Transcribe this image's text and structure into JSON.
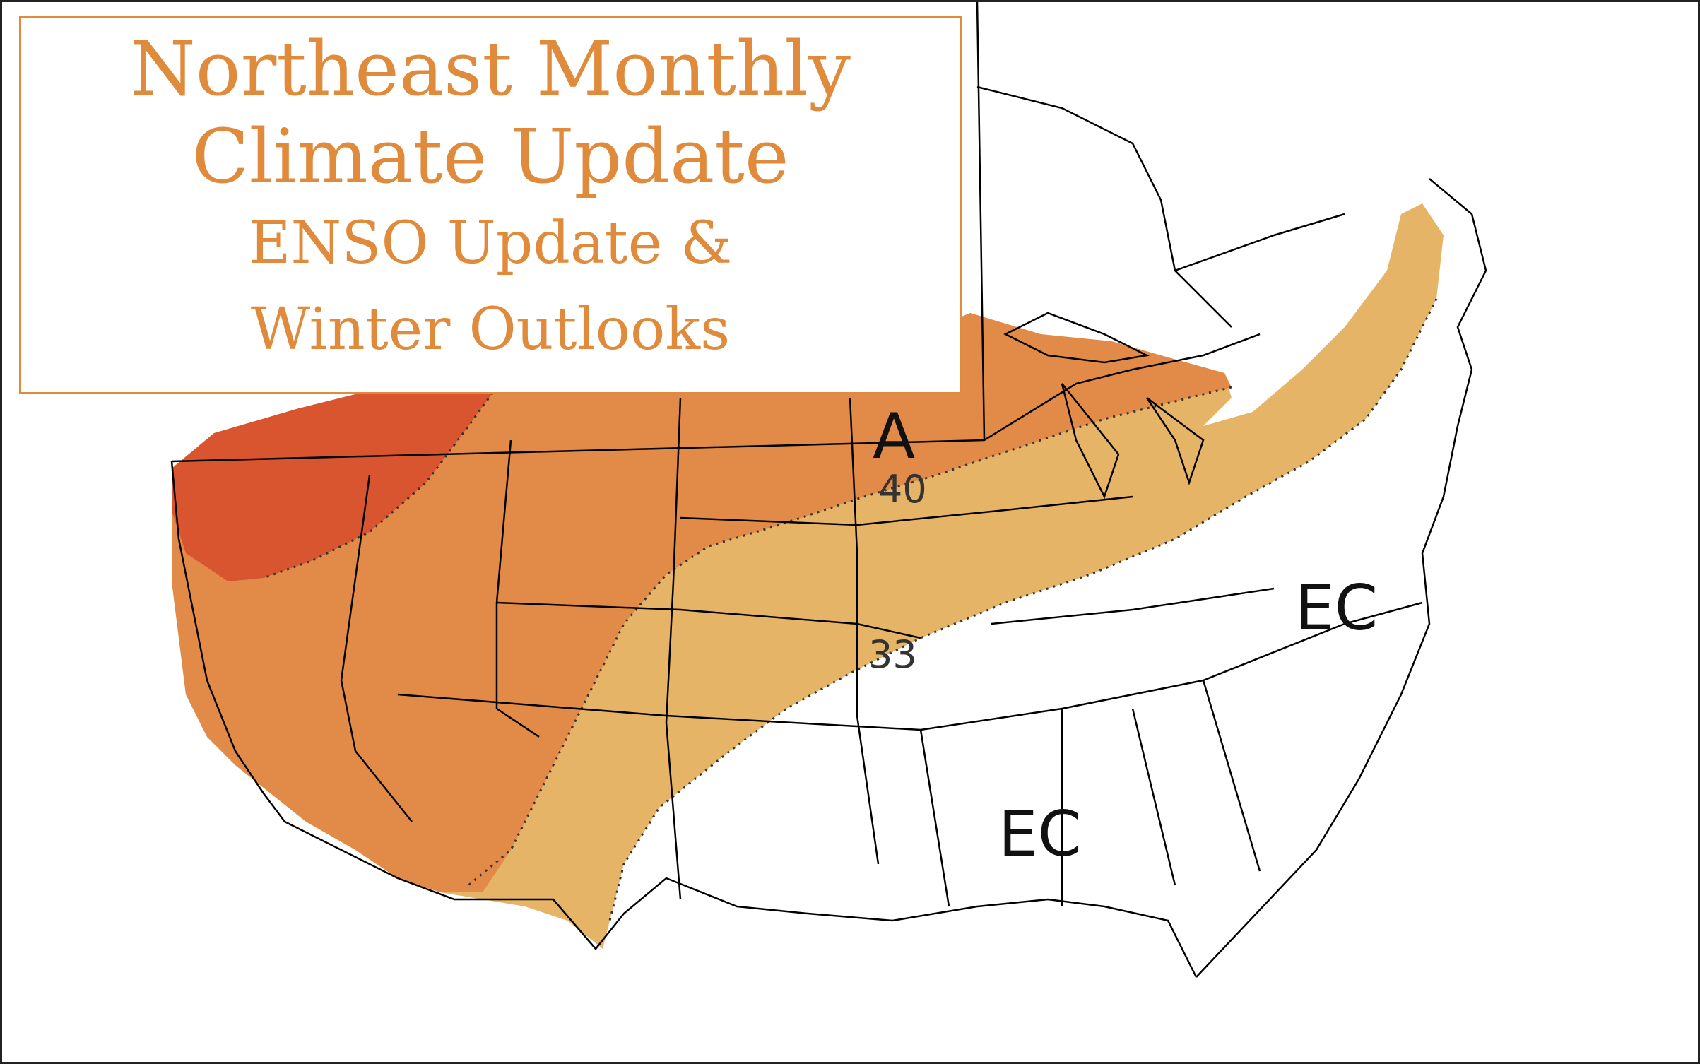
{
  "title_box": {
    "line1": "Northeast Monthly",
    "line2": "Climate Update",
    "line3": "ENSO Update &",
    "line4": "Winter Outlooks",
    "color": "#e08a3c"
  },
  "map": {
    "category_labels": {
      "above": "A",
      "ec_east": "EC",
      "ec_south": "EC"
    },
    "contour_labels": {
      "c40": "40",
      "c33": "33"
    },
    "colors": {
      "above_33_40": "#e6b466",
      "above_40_50": "#e28a48",
      "above_50_60": "#d85530",
      "land": "#ffffff",
      "lines": "#000000"
    }
  }
}
